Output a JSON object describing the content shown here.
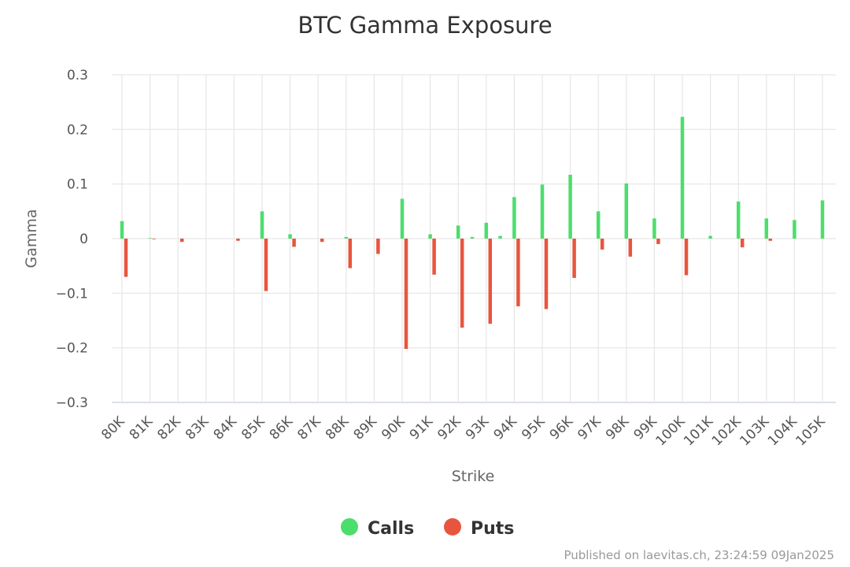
{
  "chart_data": {
    "type": "bar",
    "title": "BTC Gamma Exposure",
    "xlabel": "Strike",
    "ylabel": "Gamma",
    "ylim": [
      -0.3,
      0.3
    ],
    "yticks": [
      {
        "value": 0.3,
        "label": "0.3"
      },
      {
        "value": 0.2,
        "label": "0.2"
      },
      {
        "value": 0.1,
        "label": "0.1"
      },
      {
        "value": 0,
        "label": "0"
      },
      {
        "value": -0.1,
        "label": "−0.1"
      },
      {
        "value": -0.2,
        "label": "−0.2"
      },
      {
        "value": -0.3,
        "label": "−0.3"
      }
    ],
    "grid": true,
    "legend_position": "bottom-center",
    "categories": [
      "80K",
      "81K",
      "82K",
      "83K",
      "84K",
      "85K",
      "86K",
      "87K",
      "88K",
      "89K",
      "90K",
      "91K",
      "92K",
      "93K",
      "94K",
      "95K",
      "96K",
      "97K",
      "98K",
      "99K",
      "100K",
      "101K",
      "102K",
      "103K",
      "104K",
      "105K"
    ],
    "minor_categories": [
      "81.5K",
      "82.5K",
      "83.5K",
      "84.5K",
      "85.5K",
      "86.5K",
      "87.5K",
      "88.5K",
      "89.5K",
      "90.5K",
      "91.5K",
      "92.5K",
      "93.5K",
      "94.5K",
      "95.5K",
      "96.5K",
      "97.5K",
      "98.5K",
      "99.5K",
      "100.5K",
      "101.5K",
      "102.5K",
      "103.5K",
      "104.5K"
    ],
    "series": [
      {
        "name": "Calls",
        "color": "#4cde6c",
        "values": [
          0.032,
          0.001,
          0,
          0,
          0,
          0.05,
          0.008,
          0,
          0.003,
          0,
          0.073,
          0.008,
          0.024,
          0.029,
          0.076,
          0.099,
          0.117,
          0.05,
          0.101,
          0.037,
          0.223,
          0.005,
          0.068,
          0.037,
          0.034,
          0.07
        ],
        "minor_values": [
          0,
          0,
          0,
          0,
          0,
          0,
          0,
          0,
          0,
          0,
          0,
          0.003,
          0.005,
          0,
          0,
          0,
          0,
          0,
          0,
          0,
          0,
          0,
          0,
          0
        ]
      },
      {
        "name": "Puts",
        "color": "#e8553e",
        "values": [
          -0.07,
          -0.001,
          -0.006,
          0,
          -0.004,
          -0.096,
          -0.015,
          -0.006,
          -0.054,
          -0.028,
          -0.202,
          -0.066,
          -0.163,
          -0.156,
          -0.124,
          -0.129,
          -0.072,
          -0.02,
          -0.033,
          -0.01,
          -0.067,
          0,
          -0.016,
          -0.004,
          0,
          0
        ],
        "minor_values": [
          0,
          0,
          0,
          0,
          0,
          0,
          0,
          0,
          0,
          0,
          0,
          0,
          0,
          0,
          0,
          0,
          0,
          0,
          0,
          0,
          0,
          0,
          0,
          0
        ]
      }
    ]
  },
  "credit": "Published on laevitas.ch, 23:24:59 09Jan2025"
}
